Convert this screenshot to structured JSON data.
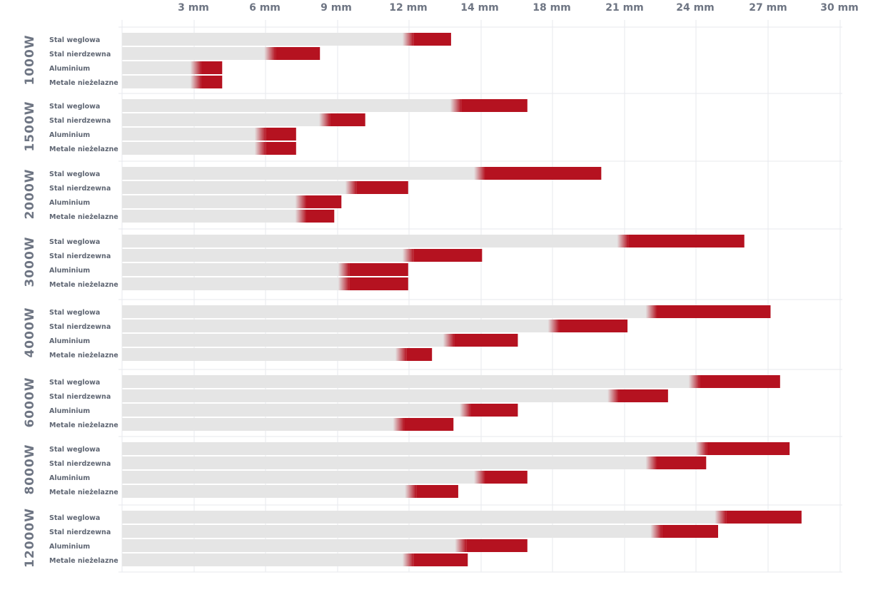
{
  "chart_data": {
    "type": "bar",
    "x_ticks": [
      "3 mm",
      "6 mm",
      "9 mm",
      "12 mm",
      "14 mm",
      "18 mm",
      "21 mm",
      "24 mm",
      "27 mm",
      "30 mm"
    ],
    "categories": [
      "Stal weglowa",
      "Stal nierdzewna",
      "Aluminium",
      "Metale nieżelazne"
    ],
    "groups": [
      {
        "name": "1000W",
        "bars": [
          {
            "base": 12.0,
            "max": 13.8
          },
          {
            "base": 6.2,
            "max": 8.3
          },
          {
            "base": 3.1,
            "max": 4.2
          },
          {
            "base": 3.1,
            "max": 4.2
          }
        ]
      },
      {
        "name": "1500W",
        "bars": [
          {
            "base": 14.0,
            "max": 17.0
          },
          {
            "base": 8.5,
            "max": 10.2
          },
          {
            "base": 5.8,
            "max": 7.3
          },
          {
            "base": 5.8,
            "max": 7.3
          }
        ]
      },
      {
        "name": "2000W",
        "bars": [
          {
            "base": 15.0,
            "max": 20.1
          },
          {
            "base": 9.6,
            "max": 12.0
          },
          {
            "base": 7.5,
            "max": 9.2
          },
          {
            "base": 7.5,
            "max": 8.9
          }
        ]
      },
      {
        "name": "3000W",
        "bars": [
          {
            "base": 21.0,
            "max": 26.1
          },
          {
            "base": 12.0,
            "max": 15.1
          },
          {
            "base": 9.3,
            "max": 12.0
          },
          {
            "base": 9.3,
            "max": 12.0
          }
        ]
      },
      {
        "name": "4000W",
        "bars": [
          {
            "base": 22.2,
            "max": 27.2
          },
          {
            "base": 18.1,
            "max": 21.2
          },
          {
            "base": 13.7,
            "max": 16.6
          },
          {
            "base": 11.7,
            "max": 13.0
          }
        ]
      },
      {
        "name": "6000W",
        "bars": [
          {
            "base": 24.0,
            "max": 27.6
          },
          {
            "base": 20.6,
            "max": 22.9
          },
          {
            "base": 14.4,
            "max": 16.6
          },
          {
            "base": 11.6,
            "max": 13.9
          }
        ]
      },
      {
        "name": "8000W",
        "bars": [
          {
            "base": 24.3,
            "max": 28.0
          },
          {
            "base": 22.2,
            "max": 24.5
          },
          {
            "base": 15.0,
            "max": 17.0
          },
          {
            "base": 12.1,
            "max": 14.1
          }
        ]
      },
      {
        "name": "12000W",
        "bars": [
          {
            "base": 25.1,
            "max": 28.5
          },
          {
            "base": 22.4,
            "max": 25.0
          },
          {
            "base": 14.2,
            "max": 17.0
          },
          {
            "base": 12.0,
            "max": 14.5
          }
        ]
      }
    ]
  },
  "colors": {
    "track": "#e5e5e5",
    "accent": "#b51220",
    "grid": "#e7e9ee",
    "text": "#6e7583"
  }
}
